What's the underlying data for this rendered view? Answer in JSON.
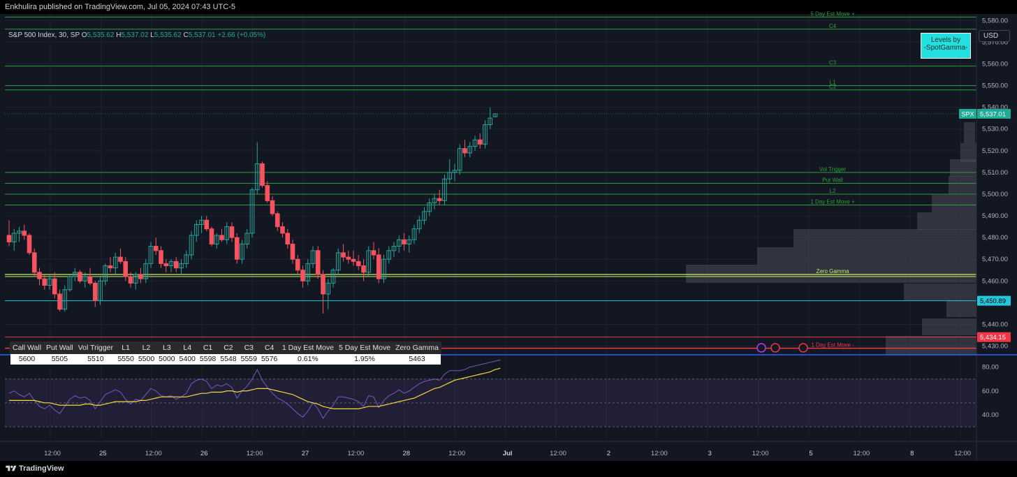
{
  "header": {
    "published": "Enkhulira published on TradingView.com, Jul 05, 2024 07:43 UTC-5"
  },
  "legend": {
    "symbol": "S&P 500 Index, 30, SP",
    "o_label": "O",
    "o": "5,535.62",
    "h_label": "H",
    "h": "5,537.02",
    "l_label": "L",
    "l": "5,535.62",
    "c_label": "C",
    "c": "5,537.01",
    "change": "+2.66 (+0.05%)"
  },
  "badge": {
    "line1": "Levels by",
    "line2": "-SpotGamma-"
  },
  "currency_button": "USD",
  "footer": {
    "brand": "TradingView"
  },
  "levels_table": {
    "headers": [
      "Call Wall",
      "Put Wall",
      "Vol Trigger",
      "L1",
      "L2",
      "L3",
      "L4",
      "C1",
      "C2",
      "C3",
      "C4",
      "1 Day Est Move",
      "5 Day Est Move",
      "Zero Gamma"
    ],
    "values": [
      "5600",
      "5505",
      "5510",
      "5550",
      "5500",
      "5000",
      "5400",
      "5598",
      "5548",
      "5559",
      "5576",
      "0.61%",
      "1.95%",
      "5463"
    ]
  },
  "colors": {
    "up": "#26a69a",
    "down": "#f7525f",
    "level_green": "#2e9e3a",
    "zero_gamma": "#c6f06a",
    "cyan": "#26c6da",
    "red": "#f23645",
    "rsi": "#7e57c2",
    "rsi_ma": "#f5d742"
  },
  "chart_data": {
    "type": "candlestick",
    "price_axis": {
      "ticks": [
        "5,580.00",
        "5,570.00",
        "5,560.00",
        "5,550.00",
        "5,540.00",
        "5,530.00",
        "5,520.00",
        "5,510.00",
        "5,500.00",
        "5,490.00",
        "5,480.00",
        "5,470.00",
        "5,460.00",
        "5,440.00",
        "5,430.00"
      ],
      "range": [
        5426,
        5583
      ]
    },
    "time_axis": {
      "ticks": [
        "12:00",
        "25",
        "12:00",
        "26",
        "12:00",
        "27",
        "12:00",
        "28",
        "12:00",
        "Jul",
        "12:00",
        "2",
        "12:00",
        "3",
        "12:00",
        "5",
        "12:00",
        "8",
        "12:00"
      ]
    },
    "price_labels": [
      {
        "tag": "SPX",
        "value": "5,537.01"
      },
      {
        "value": "5,450.89"
      },
      {
        "value": "5,434.15"
      }
    ],
    "level_lines": [
      {
        "label": "5 Day Est Move +",
        "price": 5581.6
      },
      {
        "label": "C4",
        "price": 5576
      },
      {
        "label": "C3",
        "price": 5559
      },
      {
        "label": "L1",
        "price": 5550
      },
      {
        "label": "C2",
        "price": 5548
      },
      {
        "label": "Vol Trigger",
        "price": 5510
      },
      {
        "label": "Put Wall",
        "price": 5505
      },
      {
        "label": "L2",
        "price": 5500
      },
      {
        "label": "1 Day Est Move +",
        "price": 5495
      },
      {
        "label": "Zero Gamma",
        "price": 5463
      },
      {
        "label": "1 Day Est Move -",
        "price": 5429
      }
    ],
    "candles": [
      [
        5481,
        5488,
        5476,
        5478
      ],
      [
        5478,
        5484,
        5474,
        5482
      ],
      [
        5482,
        5485,
        5478,
        5483
      ],
      [
        5483,
        5486,
        5479,
        5481
      ],
      [
        5481,
        5482,
        5472,
        5473
      ],
      [
        5473,
        5475,
        5462,
        5464
      ],
      [
        5464,
        5466,
        5458,
        5461
      ],
      [
        5461,
        5463,
        5456,
        5458
      ],
      [
        5458,
        5463,
        5456,
        5461
      ],
      [
        5461,
        5464,
        5452,
        5454
      ],
      [
        5454,
        5456,
        5446,
        5447
      ],
      [
        5447,
        5458,
        5446,
        5456
      ],
      [
        5456,
        5463,
        5455,
        5462
      ],
      [
        5462,
        5466,
        5460,
        5464
      ],
      [
        5464,
        5465,
        5459,
        5460
      ],
      [
        5460,
        5464,
        5457,
        5462
      ],
      [
        5462,
        5466,
        5458,
        5459
      ],
      [
        5459,
        5460,
        5448,
        5451
      ],
      [
        5451,
        5462,
        5449,
        5460
      ],
      [
        5460,
        5468,
        5458,
        5467
      ],
      [
        5467,
        5471,
        5464,
        5466
      ],
      [
        5466,
        5473,
        5463,
        5471
      ],
      [
        5471,
        5475,
        5468,
        5469
      ],
      [
        5469,
        5471,
        5460,
        5462
      ],
      [
        5462,
        5464,
        5457,
        5459
      ],
      [
        5459,
        5464,
        5456,
        5463
      ],
      [
        5463,
        5466,
        5459,
        5461
      ],
      [
        5461,
        5470,
        5459,
        5468
      ],
      [
        5468,
        5478,
        5466,
        5476
      ],
      [
        5476,
        5480,
        5472,
        5474
      ],
      [
        5474,
        5476,
        5466,
        5468
      ],
      [
        5468,
        5470,
        5464,
        5467
      ],
      [
        5467,
        5470,
        5464,
        5469
      ],
      [
        5469,
        5471,
        5464,
        5466
      ],
      [
        5466,
        5470,
        5463,
        5468
      ],
      [
        5468,
        5474,
        5466,
        5472
      ],
      [
        5472,
        5483,
        5470,
        5481
      ],
      [
        5481,
        5488,
        5478,
        5486
      ],
      [
        5486,
        5490,
        5482,
        5488
      ],
      [
        5488,
        5490,
        5483,
        5484
      ],
      [
        5484,
        5485,
        5476,
        5477
      ],
      [
        5477,
        5482,
        5475,
        5481
      ],
      [
        5481,
        5484,
        5478,
        5479
      ],
      [
        5479,
        5487,
        5477,
        5485
      ],
      [
        5485,
        5487,
        5478,
        5480
      ],
      [
        5480,
        5482,
        5468,
        5470
      ],
      [
        5470,
        5479,
        5468,
        5477
      ],
      [
        5477,
        5484,
        5475,
        5482
      ],
      [
        5482,
        5503,
        5480,
        5502
      ],
      [
        5502,
        5524,
        5500,
        5514
      ],
      [
        5514,
        5515,
        5503,
        5504
      ],
      [
        5504,
        5506,
        5496,
        5497
      ],
      [
        5497,
        5499,
        5490,
        5491
      ],
      [
        5491,
        5492,
        5483,
        5485
      ],
      [
        5485,
        5487,
        5480,
        5482
      ],
      [
        5482,
        5484,
        5475,
        5477
      ],
      [
        5477,
        5479,
        5468,
        5470
      ],
      [
        5470,
        5472,
        5463,
        5465
      ],
      [
        5465,
        5467,
        5457,
        5460
      ],
      [
        5460,
        5470,
        5458,
        5468
      ],
      [
        5468,
        5476,
        5466,
        5474
      ],
      [
        5474,
        5476,
        5461,
        5463
      ],
      [
        5463,
        5465,
        5445,
        5454
      ],
      [
        5454,
        5461,
        5447,
        5459
      ],
      [
        5459,
        5466,
        5457,
        5465
      ],
      [
        5465,
        5475,
        5463,
        5473
      ],
      [
        5473,
        5477,
        5469,
        5471
      ],
      [
        5471,
        5474,
        5468,
        5470
      ],
      [
        5470,
        5474,
        5467,
        5469
      ],
      [
        5469,
        5472,
        5465,
        5467
      ],
      [
        5467,
        5470,
        5460,
        5464
      ],
      [
        5464,
        5476,
        5462,
        5474
      ],
      [
        5474,
        5478,
        5470,
        5472
      ],
      [
        5472,
        5475,
        5459,
        5461
      ],
      [
        5461,
        5472,
        5459,
        5470
      ],
      [
        5470,
        5476,
        5468,
        5474
      ],
      [
        5474,
        5478,
        5471,
        5476
      ],
      [
        5476,
        5481,
        5473,
        5479
      ],
      [
        5479,
        5482,
        5474,
        5477
      ],
      [
        5477,
        5481,
        5473,
        5479
      ],
      [
        5479,
        5486,
        5477,
        5484
      ],
      [
        5484,
        5490,
        5482,
        5488
      ],
      [
        5488,
        5494,
        5486,
        5492
      ],
      [
        5492,
        5498,
        5490,
        5496
      ],
      [
        5496,
        5500,
        5493,
        5498
      ],
      [
        5498,
        5502,
        5495,
        5497
      ],
      [
        5497,
        5509,
        5495,
        5507
      ],
      [
        5507,
        5516,
        5505,
        5510
      ],
      [
        5510,
        5514,
        5506,
        5511
      ],
      [
        5511,
        5523,
        5509,
        5521
      ],
      [
        5521,
        5525,
        5517,
        5519
      ],
      [
        5519,
        5524,
        5517,
        5522
      ],
      [
        5522,
        5527,
        5520,
        5525
      ],
      [
        5525,
        5528,
        5521,
        5523
      ],
      [
        5523,
        5534,
        5521,
        5532
      ],
      [
        5532,
        5540,
        5530,
        5535
      ],
      [
        5535.62,
        5537.02,
        5535.62,
        5537.01
      ]
    ],
    "rsi_axis": {
      "ticks": [
        "80.00",
        "60.00",
        "40.00"
      ],
      "range": [
        20,
        88
      ]
    },
    "rsi": [
      58,
      60,
      57,
      55,
      58,
      52,
      47,
      45,
      48,
      44,
      41,
      47,
      53,
      56,
      54,
      55,
      52,
      45,
      51,
      57,
      59,
      61,
      59,
      53,
      49,
      53,
      52,
      57,
      62,
      60,
      56,
      55,
      56,
      53,
      55,
      58,
      66,
      69,
      70,
      68,
      62,
      65,
      64,
      66,
      63,
      54,
      60,
      64,
      70,
      78,
      69,
      63,
      58,
      54,
      52,
      49,
      45,
      41,
      38,
      43,
      50,
      45,
      37,
      43,
      48,
      55,
      55,
      54,
      53,
      51,
      47,
      56,
      55,
      46,
      52,
      56,
      58,
      61,
      58,
      60,
      63,
      66,
      68,
      69,
      70,
      69,
      74,
      77,
      77,
      77,
      78,
      80,
      81,
      82,
      83,
      84,
      85,
      86
    ],
    "rsi_ma": [
      52,
      52,
      52,
      52,
      52,
      52,
      51,
      50,
      50,
      49,
      48,
      48,
      48,
      48,
      48,
      49,
      49,
      48,
      48,
      49,
      50,
      51,
      51,
      51,
      51,
      51,
      52,
      52,
      53,
      54,
      55,
      55,
      55,
      55,
      55,
      55,
      56,
      57,
      58,
      58,
      59,
      59,
      59,
      60,
      60,
      59,
      60,
      60,
      61,
      62,
      62,
      62,
      61,
      60,
      59,
      58,
      57,
      55,
      53,
      51,
      50,
      49,
      47,
      46,
      45,
      45,
      45,
      45,
      45,
      45,
      46,
      47,
      47,
      47,
      48,
      49,
      50,
      51,
      52,
      53,
      54,
      56,
      58,
      60,
      62,
      63,
      65,
      67,
      69,
      70,
      71,
      72,
      73,
      74,
      75,
      76,
      78,
      79
    ]
  }
}
